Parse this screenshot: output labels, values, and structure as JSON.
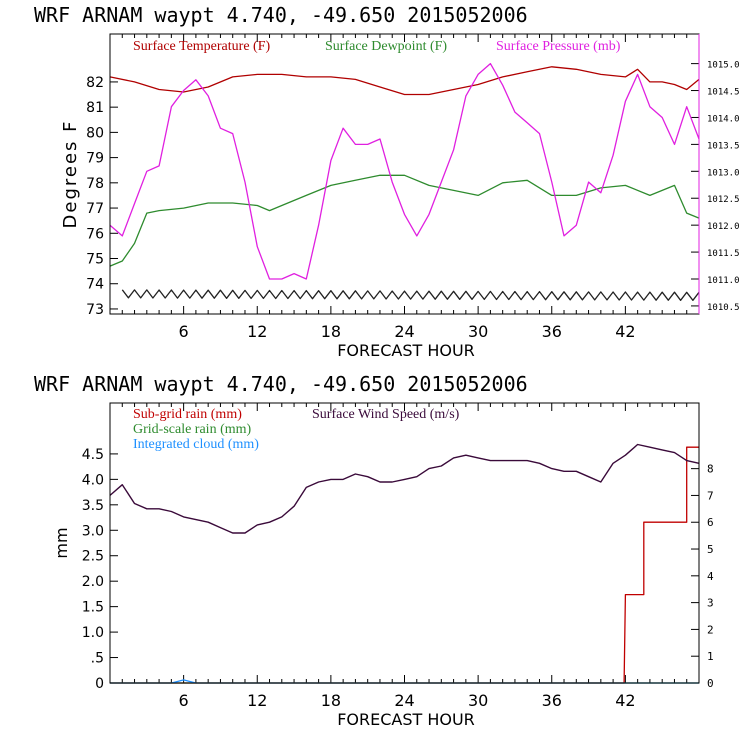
{
  "chart_data": [
    {
      "type": "line",
      "header": "WRF   ARNAM waypt     4.740, -49.650  2015052006",
      "xlabel": "FORECAST HOUR",
      "ylabel": "Degrees F",
      "xlim": [
        0,
        48
      ],
      "x_ticks": [
        6,
        12,
        18,
        24,
        30,
        36,
        42
      ],
      "ylim": [
        72.8,
        83.9
      ],
      "y_ticks": [
        73,
        74,
        75,
        76,
        77,
        78,
        79,
        80,
        81,
        82
      ],
      "y2lim": [
        1010.35,
        1015.55
      ],
      "y2_ticks": [
        "1010.5",
        "1011.0",
        "1011.5",
        "1012.0",
        "1012.5",
        "1013.0",
        "1013.5",
        "1014.0",
        "1014.5",
        "1015.0"
      ],
      "colors": {
        "temp": "#b00000",
        "dew": "#2e8b2e",
        "pres": "#e020e0",
        "wind": "#222222"
      },
      "series": [
        {
          "name": "Surface Temperature (F)",
          "axis": "left",
          "x": [
            0,
            2,
            4,
            6,
            8,
            10,
            12,
            14,
            16,
            18,
            20,
            22,
            24,
            26,
            28,
            30,
            32,
            34,
            36,
            38,
            40,
            42,
            43,
            44,
            45,
            46,
            47,
            48
          ],
          "values": [
            82.2,
            82.0,
            81.7,
            81.6,
            81.8,
            82.2,
            82.3,
            82.3,
            82.2,
            82.2,
            82.1,
            81.8,
            81.5,
            81.5,
            81.7,
            81.9,
            82.2,
            82.4,
            82.6,
            82.5,
            82.3,
            82.2,
            82.5,
            82.0,
            82.0,
            81.9,
            81.7,
            82.1
          ]
        },
        {
          "name": "Surface Dewpoint (F)",
          "axis": "left",
          "x": [
            0,
            1,
            2,
            3,
            4,
            6,
            8,
            10,
            12,
            13,
            14,
            16,
            18,
            20,
            22,
            24,
            26,
            28,
            30,
            32,
            34,
            36,
            38,
            40,
            42,
            44,
            46,
            47,
            48
          ],
          "values": [
            74.7,
            74.9,
            75.6,
            76.8,
            76.9,
            77.0,
            77.2,
            77.2,
            77.1,
            76.9,
            77.1,
            77.5,
            77.9,
            78.1,
            78.3,
            78.3,
            77.9,
            77.7,
            77.5,
            78.0,
            78.1,
            77.5,
            77.5,
            77.8,
            77.9,
            77.5,
            77.9,
            76.8,
            76.6
          ]
        },
        {
          "name": "Surface Pressure (mb)",
          "axis": "right",
          "x": [
            0,
            1,
            2,
            3,
            4,
            5,
            6,
            7,
            8,
            9,
            10,
            11,
            12,
            13,
            14,
            15,
            16,
            17,
            18,
            19,
            20,
            21,
            22,
            23,
            24,
            25,
            26,
            27,
            28,
            29,
            30,
            31,
            32,
            33,
            34,
            35,
            36,
            37,
            38,
            39,
            40,
            41,
            42,
            43,
            44,
            45,
            46,
            47,
            48
          ],
          "values": [
            1012.0,
            1011.8,
            1012.4,
            1013.0,
            1013.1,
            1014.2,
            1014.5,
            1014.7,
            1014.4,
            1013.8,
            1013.7,
            1012.8,
            1011.6,
            1011.0,
            1011.0,
            1011.1,
            1011.0,
            1012.0,
            1013.2,
            1013.8,
            1013.5,
            1013.5,
            1013.6,
            1012.8,
            1012.2,
            1011.8,
            1012.2,
            1012.8,
            1013.4,
            1014.4,
            1014.8,
            1015.0,
            1014.6,
            1014.1,
            1013.9,
            1013.7,
            1012.8,
            1011.8,
            1012.0,
            1012.8,
            1012.6,
            1013.3,
            1014.3,
            1014.8,
            1014.2,
            1014.0,
            1013.5,
            1014.2,
            1013.6
          ]
        },
        {
          "name": "",
          "axis": "left",
          "pattern": "zigzag",
          "x": [
            1,
            48
          ],
          "values": [
            73.6,
            73.5
          ]
        }
      ]
    },
    {
      "type": "line",
      "header": "WRF   ARNAM waypt     4.740, -49.650  2015052006",
      "xlabel": "FORECAST HOUR",
      "ylabel": "mm",
      "xlim": [
        0,
        48
      ],
      "x_ticks": [
        6,
        12,
        18,
        24,
        30,
        36,
        42
      ],
      "ylim": [
        0,
        5.5
      ],
      "y_ticks": [
        "0",
        ".5",
        "1.0",
        "1.5",
        "2.0",
        "2.5",
        "3.0",
        "3.5",
        "4.0",
        "4.5"
      ],
      "y2lim": [
        0,
        10.45
      ],
      "y2_ticks": [
        "0",
        "1",
        "2",
        "3",
        "4",
        "5",
        "6",
        "7",
        "8"
      ],
      "colors": {
        "subgrid": "#c00000",
        "gridscale": "#2e8b2e",
        "cloud": "#1e90ff",
        "wind": "#3a0a3a"
      },
      "series": [
        {
          "name": "Sub-grid rain (mm)",
          "axis": "right",
          "x": [
            0,
            41.9,
            42.0,
            43.5,
            43.5,
            46.0,
            46.0,
            47.0,
            47.0,
            48
          ],
          "values": [
            0,
            0,
            3.3,
            3.3,
            6.0,
            6.0,
            6.0,
            6.0,
            8.8,
            8.8
          ]
        },
        {
          "name": "Grid-scale rain (mm)",
          "axis": "left",
          "x": [
            0,
            48
          ],
          "values": [
            0,
            0
          ]
        },
        {
          "name": "Integrated cloud (mm)",
          "axis": "left",
          "x": [
            0,
            5,
            5.5,
            6,
            6.5,
            7,
            48
          ],
          "values": [
            0,
            0,
            0.03,
            0.06,
            0.03,
            0,
            0
          ]
        },
        {
          "name": "Surface Wind Speed (m/s)",
          "axis": "right",
          "x": [
            0,
            1,
            2,
            3,
            4,
            5,
            6,
            7,
            8,
            9,
            10,
            11,
            12,
            13,
            14,
            15,
            16,
            17,
            18,
            19,
            20,
            21,
            22,
            23,
            24,
            25,
            26,
            27,
            28,
            29,
            30,
            31,
            32,
            33,
            34,
            35,
            36,
            37,
            38,
            39,
            40,
            41,
            42,
            43,
            44,
            45,
            46,
            47,
            48
          ],
          "values": [
            7.0,
            7.4,
            6.7,
            6.5,
            6.5,
            6.4,
            6.2,
            6.1,
            6.0,
            5.8,
            5.6,
            5.6,
            5.9,
            6.0,
            6.2,
            6.6,
            7.3,
            7.5,
            7.6,
            7.6,
            7.8,
            7.7,
            7.5,
            7.5,
            7.6,
            7.7,
            8.0,
            8.1,
            8.4,
            8.5,
            8.4,
            8.3,
            8.3,
            8.3,
            8.3,
            8.2,
            8.0,
            7.9,
            7.9,
            7.7,
            7.5,
            8.2,
            8.5,
            8.9,
            8.8,
            8.7,
            8.6,
            8.3,
            8.2
          ]
        }
      ]
    }
  ]
}
